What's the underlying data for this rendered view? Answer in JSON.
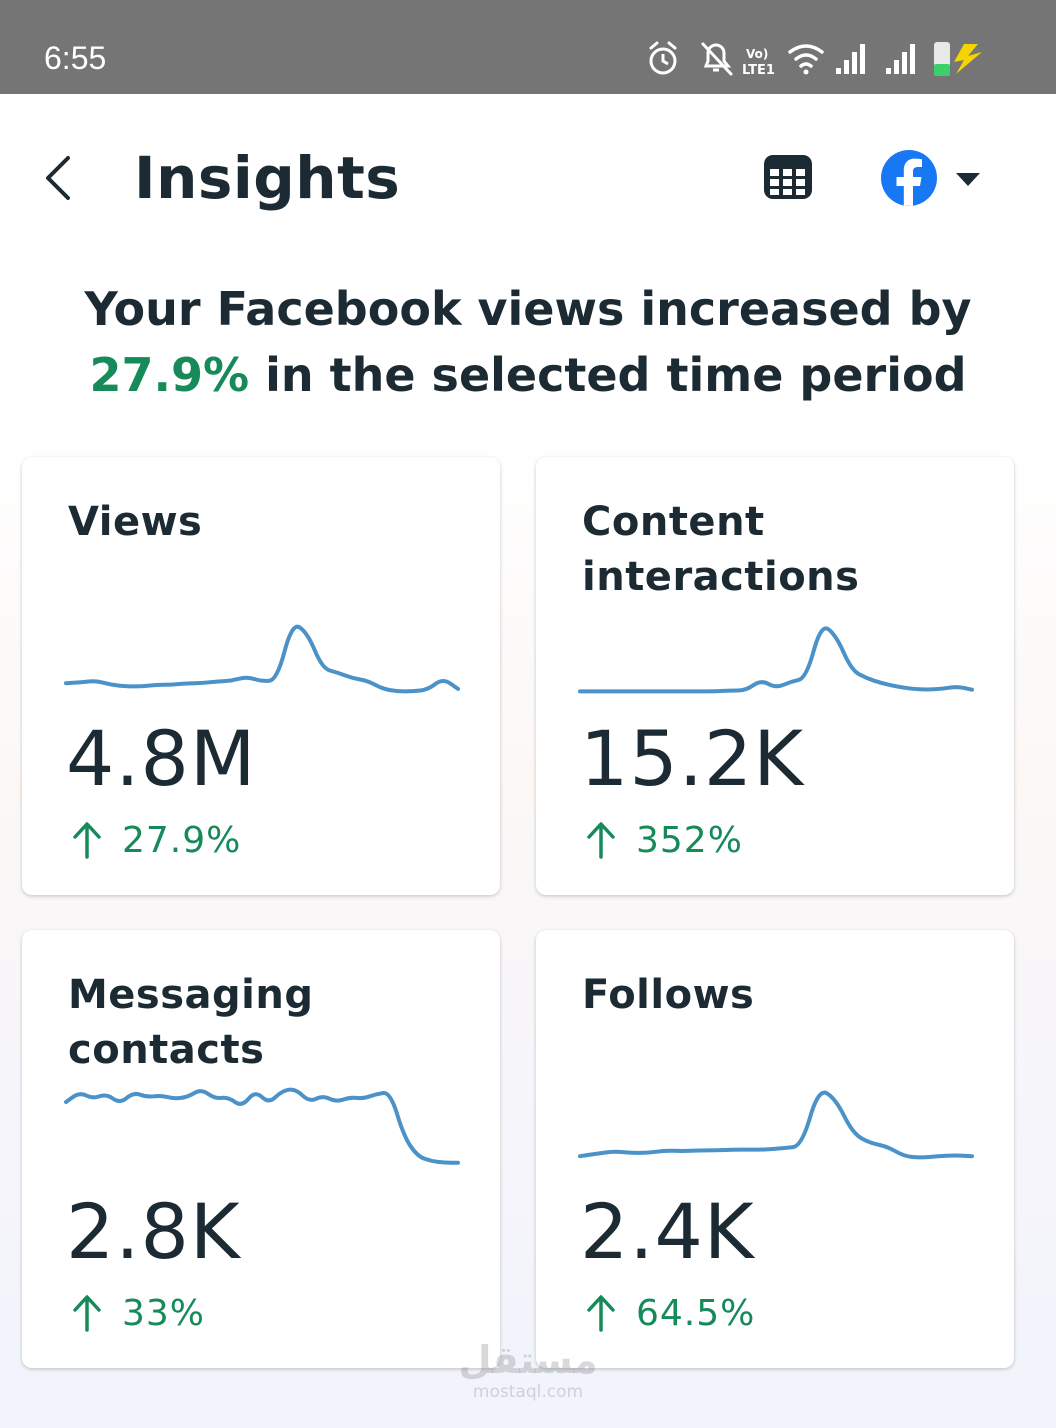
{
  "status_bar": {
    "time": "6:55",
    "icons": [
      "alarm-icon",
      "notifications-off-icon",
      "volte-lte-icon",
      "wifi-icon",
      "signal-sim1-icon",
      "signal-sim2-icon",
      "battery-charging-icon"
    ]
  },
  "header": {
    "title": "Insights",
    "back_icon": "chevron-left-icon",
    "calendar_icon": "calendar-icon",
    "account_icon": "facebook-logo-icon",
    "dropdown_icon": "caret-down-icon"
  },
  "summary": {
    "prefix": "Your Facebook views increased by",
    "percent": "27.9%",
    "suffix": "in the selected time period"
  },
  "cards": [
    {
      "title": "Views",
      "value": "4.8M",
      "change": "27.9%",
      "trend": "up",
      "sparkline": [
        0.12,
        0.13,
        0.15,
        0.1,
        0.08,
        0.08,
        0.1,
        0.1,
        0.12,
        0.12,
        0.14,
        0.15,
        0.2,
        0.14,
        0.16,
        0.86,
        0.74,
        0.3,
        0.25,
        0.18,
        0.15,
        0.05,
        0.02,
        0.02,
        0.04,
        0.18,
        0.05
      ]
    },
    {
      "title": "Content interactions",
      "value": "15.2K",
      "change": "352%",
      "trend": "up",
      "sparkline": [
        0.02,
        0.02,
        0.02,
        0.02,
        0.02,
        0.02,
        0.02,
        0.02,
        0.02,
        0.02,
        0.03,
        0.03,
        0.16,
        0.06,
        0.14,
        0.18,
        0.85,
        0.7,
        0.28,
        0.18,
        0.12,
        0.08,
        0.05,
        0.04,
        0.05,
        0.08,
        0.04
      ]
    },
    {
      "title": "Messaging contacts",
      "value": "2.8K",
      "change": "33%",
      "trend": "up",
      "sparkline": [
        0.78,
        0.9,
        0.82,
        0.88,
        0.76,
        0.9,
        0.84,
        0.86,
        0.82,
        0.84,
        0.94,
        0.82,
        0.84,
        0.72,
        0.92,
        0.76,
        0.92,
        0.94,
        0.78,
        0.86,
        0.78,
        0.84,
        0.82,
        0.88,
        0.9,
        0.36,
        0.12,
        0.06,
        0.04,
        0.04
      ]
    },
    {
      "title": "Follows",
      "value": "2.4K",
      "change": "64.5%",
      "trend": "up",
      "sparkline": [
        0.12,
        0.15,
        0.18,
        0.16,
        0.16,
        0.19,
        0.18,
        0.19,
        0.19,
        0.2,
        0.2,
        0.2,
        0.22,
        0.24,
        0.95,
        0.82,
        0.4,
        0.28,
        0.24,
        0.12,
        0.1,
        0.12,
        0.13,
        0.12
      ]
    }
  ],
  "colors": {
    "accent_green": "#168a58",
    "sparkline": "#4a92c8",
    "facebook_blue": "#1877f2",
    "text": "#1c2b33"
  },
  "watermark": {
    "logo": "مستقل",
    "url": "mostaql.com"
  }
}
